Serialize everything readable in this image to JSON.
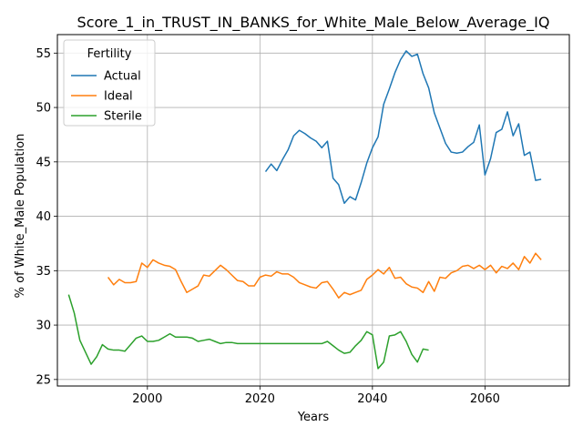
{
  "chart_data": {
    "type": "line",
    "title": "Score_1_in_TRUST_IN_BANKS_for_White_Male_Below_Average_IQ",
    "xlabel": "Years",
    "ylabel": "% of White_Male Population",
    "xlim": [
      1984,
      2075
    ],
    "ylim": [
      24.4,
      56.7
    ],
    "xticks": [
      2000,
      2020,
      2040,
      2060
    ],
    "yticks": [
      25,
      30,
      35,
      40,
      45,
      50,
      55
    ],
    "grid": true,
    "legend": {
      "title": "Fertility",
      "placement": "top-left"
    },
    "series": [
      {
        "name": "Actual",
        "color": "#1f77b4",
        "x": [
          2021,
          2022,
          2023,
          2024,
          2025,
          2026,
          2027,
          2028,
          2029,
          2030,
          2031,
          2032,
          2033,
          2034,
          2035,
          2036,
          2037,
          2038,
          2039,
          2040,
          2041,
          2042,
          2043,
          2044,
          2045,
          2046,
          2047,
          2048,
          2049,
          2050,
          2051,
          2052,
          2053,
          2054,
          2055,
          2056,
          2057,
          2058,
          2059,
          2060,
          2061,
          2062,
          2063,
          2064,
          2065,
          2066,
          2067,
          2068,
          2069,
          2070
        ],
        "values": [
          44.1,
          44.8,
          44.2,
          45.2,
          46.1,
          47.4,
          47.9,
          47.6,
          47.2,
          46.9,
          46.3,
          46.9,
          43.5,
          42.9,
          41.2,
          41.8,
          41.5,
          43.1,
          44.9,
          46.3,
          47.3,
          50.3,
          51.7,
          53.2,
          54.4,
          55.2,
          54.7,
          54.9,
          53.1,
          51.8,
          49.5,
          48.1,
          46.7,
          45.9,
          45.8,
          45.9,
          46.4,
          46.8,
          48.4,
          43.8,
          45.3,
          47.7,
          48.0,
          49.6,
          47.4,
          48.5,
          45.6,
          45.9,
          43.3,
          43.4
        ]
      },
      {
        "name": "Ideal",
        "color": "#ff7f0e",
        "x": [
          1993,
          1994,
          1995,
          1996,
          1997,
          1998,
          1999,
          2000,
          2001,
          2002,
          2003,
          2004,
          2005,
          2006,
          2007,
          2008,
          2009,
          2010,
          2011,
          2012,
          2013,
          2014,
          2015,
          2016,
          2017,
          2018,
          2019,
          2020,
          2021,
          2022,
          2023,
          2024,
          2025,
          2026,
          2027,
          2028,
          2029,
          2030,
          2031,
          2032,
          2033,
          2034,
          2035,
          2036,
          2037,
          2038,
          2039,
          2040,
          2041,
          2042,
          2043,
          2044,
          2045,
          2046,
          2047,
          2048,
          2049,
          2050,
          2051,
          2052,
          2053,
          2054,
          2055,
          2056,
          2057,
          2058,
          2059,
          2060,
          2061,
          2062,
          2063,
          2064,
          2065,
          2066,
          2067,
          2068,
          2069,
          2070
        ],
        "values": [
          34.4,
          33.7,
          34.2,
          33.9,
          33.9,
          34.0,
          35.7,
          35.3,
          36.0,
          35.7,
          35.5,
          35.4,
          35.1,
          34.0,
          33.0,
          33.3,
          33.6,
          34.6,
          34.5,
          35.0,
          35.5,
          35.1,
          34.6,
          34.1,
          34.0,
          33.6,
          33.6,
          34.4,
          34.6,
          34.5,
          34.9,
          34.7,
          34.7,
          34.4,
          33.9,
          33.7,
          33.5,
          33.4,
          33.9,
          34.0,
          33.3,
          32.5,
          33.0,
          32.8,
          33.0,
          33.2,
          34.2,
          34.6,
          35.1,
          34.7,
          35.3,
          34.3,
          34.4,
          33.8,
          33.5,
          33.4,
          33.0,
          34.0,
          33.1,
          34.4,
          34.3,
          34.8,
          35.0,
          35.4,
          35.5,
          35.2,
          35.5,
          35.1,
          35.5,
          34.8,
          35.4,
          35.2,
          35.7,
          35.1,
          36.3,
          35.7,
          36.6,
          36.0
        ]
      },
      {
        "name": "Sterile",
        "color": "#2ca02c",
        "x": [
          1986,
          1987,
          1988,
          1989,
          1990,
          1991,
          1992,
          1993,
          1994,
          1995,
          1996,
          1997,
          1998,
          1999,
          2000,
          2001,
          2002,
          2003,
          2004,
          2005,
          2006,
          2007,
          2008,
          2009,
          2010,
          2011,
          2012,
          2013,
          2014,
          2015,
          2016,
          2017,
          2018,
          2019,
          2020,
          2021,
          2022,
          2023,
          2024,
          2025,
          2026,
          2027,
          2028,
          2029,
          2030,
          2031,
          2032,
          2033,
          2034,
          2035,
          2036,
          2037,
          2038,
          2039,
          2040,
          2041,
          2042,
          2043,
          2044,
          2045,
          2046,
          2047,
          2048,
          2049,
          2050
        ],
        "values": [
          32.8,
          31.1,
          28.6,
          27.5,
          26.4,
          27.1,
          28.2,
          27.8,
          27.7,
          27.7,
          27.6,
          28.2,
          28.8,
          29.0,
          28.5,
          28.5,
          28.6,
          28.9,
          29.2,
          28.9,
          28.9,
          28.9,
          28.8,
          28.5,
          28.6,
          28.7,
          28.5,
          28.3,
          28.4,
          28.4,
          28.3,
          28.3,
          28.3,
          28.3,
          28.3,
          28.3,
          28.3,
          28.3,
          28.3,
          28.3,
          28.3,
          28.3,
          28.3,
          28.3,
          28.3,
          28.3,
          28.5,
          28.1,
          27.7,
          27.4,
          27.5,
          28.1,
          28.6,
          29.4,
          29.1,
          26.0,
          26.6,
          29.0,
          29.1,
          29.4,
          28.5,
          27.3,
          26.6,
          27.8,
          27.7
        ]
      }
    ]
  }
}
